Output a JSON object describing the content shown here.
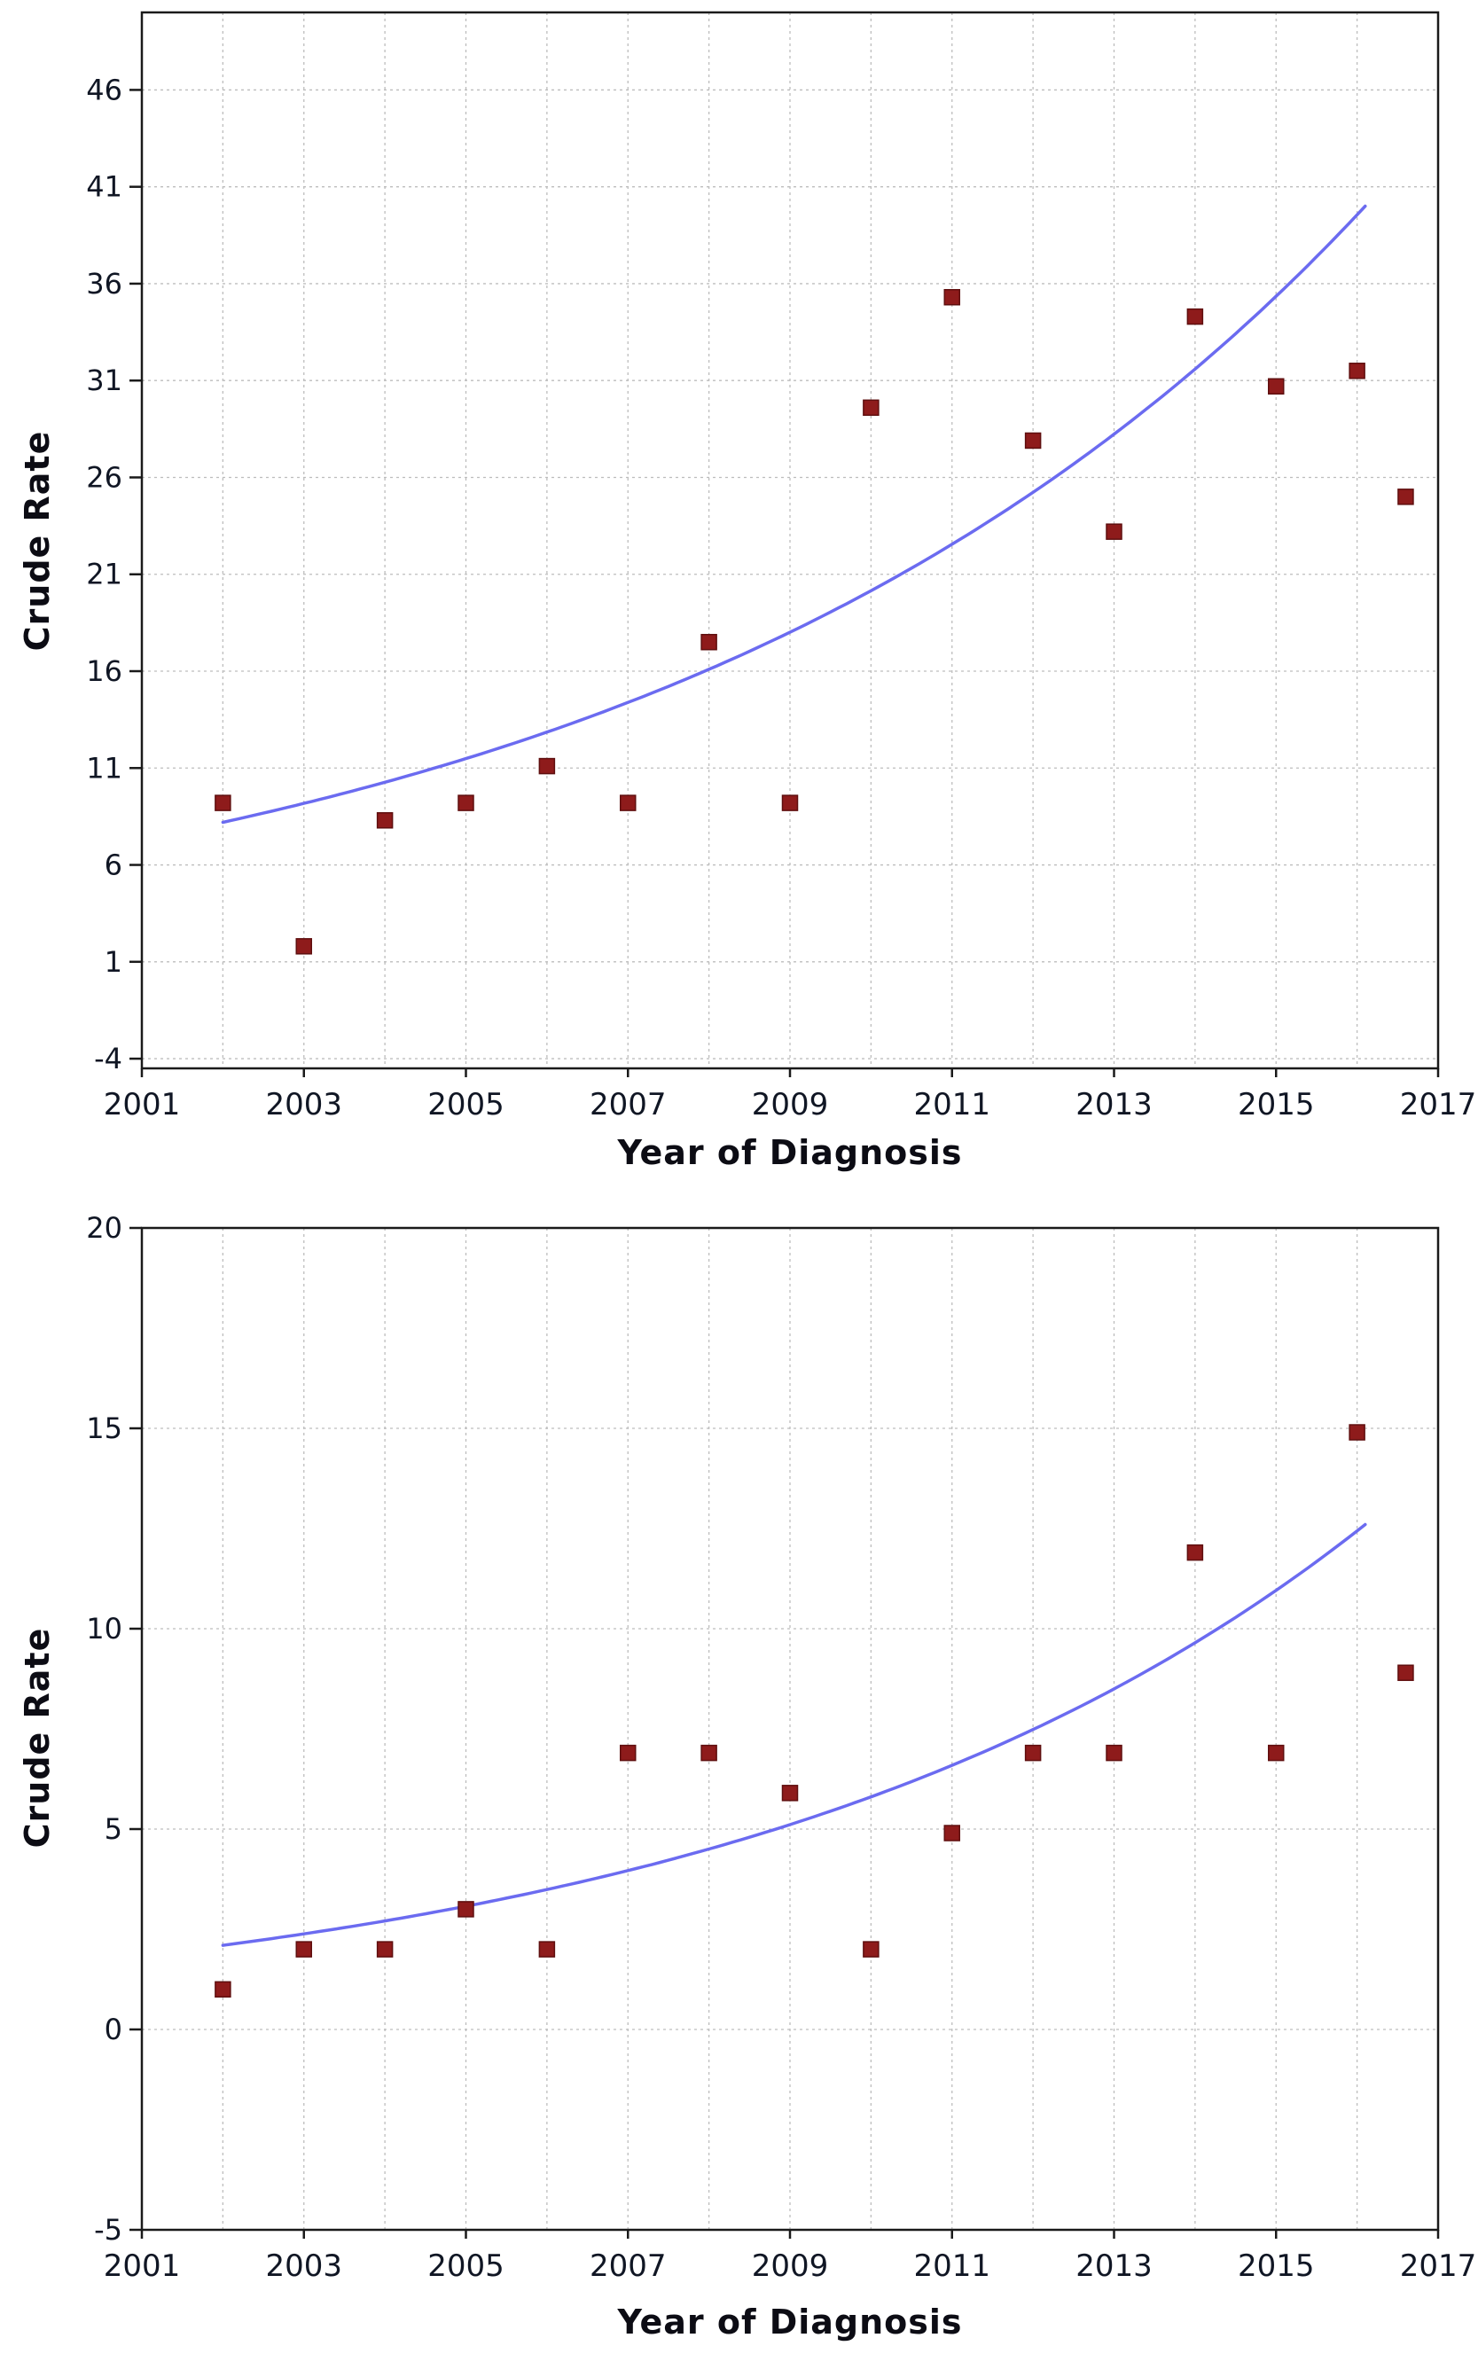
{
  "style": {
    "marker": "#8e1b1b",
    "marker_edge": "#5f0f0f",
    "trend": "#6b6bf0",
    "grid": "#bdbdbd",
    "border": "#1a1a1a",
    "tick_text": "#101624"
  },
  "chart_data": [
    {
      "type": "scatter",
      "title": "",
      "xlabel": "Year of Diagnosis",
      "ylabel": "Crude Rate",
      "xlim": [
        2001,
        2017
      ],
      "ylim": [
        -4.5,
        50
      ],
      "xticks": [
        2001,
        2003,
        2005,
        2007,
        2009,
        2011,
        2013,
        2015,
        2017
      ],
      "yticks": [
        -4,
        1,
        6,
        11,
        16,
        21,
        26,
        31,
        36,
        41,
        46
      ],
      "grid": true,
      "legend": "none",
      "points": [
        [
          2002,
          9.2
        ],
        [
          2003,
          1.8
        ],
        [
          2004,
          8.3
        ],
        [
          2005,
          9.2
        ],
        [
          2006,
          11.1
        ],
        [
          2007,
          9.2
        ],
        [
          2008,
          17.5
        ],
        [
          2009,
          9.2
        ],
        [
          2010,
          29.6
        ],
        [
          2011,
          35.3
        ],
        [
          2012,
          27.9
        ],
        [
          2013,
          23.2
        ],
        [
          2014,
          34.3
        ],
        [
          2015,
          30.7
        ],
        [
          2016,
          31.5
        ],
        [
          2016.6,
          25.0
        ]
      ],
      "trend": {
        "model": "exponential",
        "x0": 2002,
        "y0": 8.2,
        "x1": 2016.1,
        "y1": 40.0
      }
    },
    {
      "type": "scatter",
      "title": "",
      "xlabel": "Year of Diagnosis",
      "ylabel": "Crude Rate",
      "xlim": [
        2001,
        2017
      ],
      "ylim": [
        -5,
        20
      ],
      "xticks": [
        2001,
        2003,
        2005,
        2007,
        2009,
        2011,
        2013,
        2015,
        2017
      ],
      "yticks": [
        -5,
        0,
        5,
        10,
        15,
        20
      ],
      "grid": true,
      "legend": "none",
      "points": [
        [
          2002,
          1.0
        ],
        [
          2003,
          2.0
        ],
        [
          2004,
          2.0
        ],
        [
          2005,
          3.0
        ],
        [
          2006,
          2.0
        ],
        [
          2007,
          6.9
        ],
        [
          2008,
          6.9
        ],
        [
          2009,
          5.9
        ],
        [
          2010,
          2.0
        ],
        [
          2011,
          4.9
        ],
        [
          2012,
          6.9
        ],
        [
          2013,
          6.9
        ],
        [
          2014,
          11.9
        ],
        [
          2015,
          6.9
        ],
        [
          2016,
          14.9
        ],
        [
          2016.6,
          8.9
        ]
      ],
      "trend": {
        "model": "exponential",
        "x0": 2002,
        "y0": 2.1,
        "x1": 2016.1,
        "y1": 12.6
      }
    }
  ]
}
